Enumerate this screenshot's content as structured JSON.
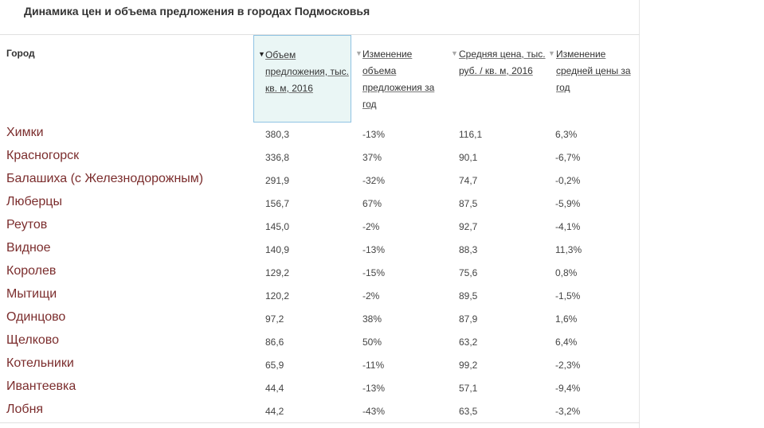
{
  "title": "Динамика цен и объема предложения в городах Подмосковья",
  "columns": {
    "city": "Город",
    "supply": "Объем предложения, тыс. кв. м, 2016",
    "supply_change": "Изменение объема предложения за год",
    "price": "Средняя цена, тыс. руб. / кв. м, 2016",
    "price_change": "Изменение средней цены за год"
  },
  "sort": {
    "active_arrow": "▼",
    "inactive_arrow": "▼"
  },
  "rows": [
    {
      "city": "Химки",
      "supply": "380,3",
      "supply_change": "-13%",
      "price": "116,1",
      "price_change": "6,3%"
    },
    {
      "city": "Красногорск",
      "supply": "336,8",
      "supply_change": "37%",
      "price": "90,1",
      "price_change": "-6,7%"
    },
    {
      "city": "Балашиха (с Железнодорожным)",
      "supply": "291,9",
      "supply_change": "-32%",
      "price": "74,7",
      "price_change": "-0,2%"
    },
    {
      "city": "Люберцы",
      "supply": "156,7",
      "supply_change": "67%",
      "price": "87,5",
      "price_change": "-5,9%"
    },
    {
      "city": "Реутов",
      "supply": "145,0",
      "supply_change": "-2%",
      "price": "92,7",
      "price_change": "-4,1%"
    },
    {
      "city": "Видное",
      "supply": "140,9",
      "supply_change": "-13%",
      "price": "88,3",
      "price_change": "11,3%"
    },
    {
      "city": "Королев",
      "supply": "129,2",
      "supply_change": "-15%",
      "price": "75,6",
      "price_change": "0,8%"
    },
    {
      "city": "Мытищи",
      "supply": "120,2",
      "supply_change": "-2%",
      "price": "89,5",
      "price_change": "-1,5%"
    },
    {
      "city": "Одинцово",
      "supply": "97,2",
      "supply_change": "38%",
      "price": "87,9",
      "price_change": "1,6%"
    },
    {
      "city": "Щелково",
      "supply": "86,6",
      "supply_change": "50%",
      "price": "63,2",
      "price_change": "6,4%"
    },
    {
      "city": "Котельники",
      "supply": "65,9",
      "supply_change": "-11%",
      "price": "99,2",
      "price_change": "-2,3%"
    },
    {
      "city": "Ивантеевка",
      "supply": "44,4",
      "supply_change": "-13%",
      "price": "57,1",
      "price_change": "-9,4%"
    },
    {
      "city": "Лобня",
      "supply": "44,2",
      "supply_change": "-43%",
      "price": "63,5",
      "price_change": "-3,2%"
    }
  ],
  "colors": {
    "city_text": "#7b2d2d",
    "active_header_bg": "#eaf6f5",
    "active_header_border": "#8fc3e3"
  }
}
